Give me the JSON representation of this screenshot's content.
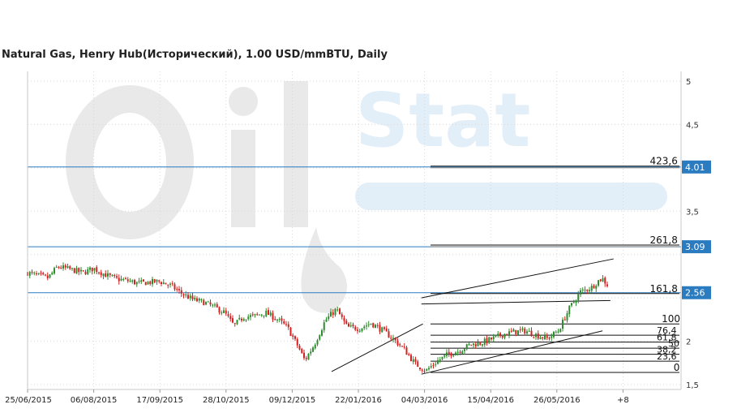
{
  "chart_data": {
    "type": "candlestick",
    "title": "Natural Gas, Henry Hub(Исторический), 1.00 USD/mmBTU, Daily",
    "watermark": "OilStat",
    "y_axis": {
      "range": [
        1.5,
        5.0
      ],
      "tick_values": [
        5,
        4.5,
        3.5,
        2,
        1.5
      ],
      "tick_labels": [
        "5",
        "4,5",
        "3,5",
        "2",
        "1,5"
      ]
    },
    "x_axis": {
      "tick_labels": [
        "25/06/2015",
        "06/08/2015",
        "17/09/2015",
        "28/10/2015",
        "09/12/2015",
        "22/01/2016",
        "04/03/2016",
        "15/04/2016",
        "26/05/2016",
        "+8"
      ]
    },
    "horizontal_levels": [
      {
        "value": 4.01,
        "label": "4.01"
      },
      {
        "value": 3.09,
        "label": "3.09"
      },
      {
        "value": 2.56,
        "label": "2.56"
      }
    ],
    "fibonacci": {
      "low": 1.64,
      "high": 2.2,
      "levels": [
        {
          "label": "423,6",
          "value": 4.02
        },
        {
          "label": "261,8",
          "value": 3.11
        },
        {
          "label": "161,8",
          "value": 2.55
        },
        {
          "label": "100",
          "value": 2.2
        },
        {
          "label": "76,4",
          "value": 2.07
        },
        {
          "label": "61,8",
          "value": 1.99
        },
        {
          "label": "50",
          "value": 1.92
        },
        {
          "label": "38,2",
          "value": 1.85
        },
        {
          "label": "23,6",
          "value": 1.77
        },
        {
          "label": "0",
          "value": 1.64
        }
      ]
    },
    "trend_lines": [
      {
        "from": {
          "date": "2016-01-04",
          "value": 1.65
        },
        "to": {
          "date": "2016-03-02",
          "value": 2.2
        }
      },
      {
        "from": {
          "date": "2016-03-01",
          "value": 1.62
        },
        "to": {
          "date": "2016-06-24",
          "value": 2.12
        }
      },
      {
        "from": {
          "date": "2016-03-01",
          "value": 2.43
        },
        "to": {
          "date": "2016-06-29",
          "value": 2.47
        }
      },
      {
        "from": {
          "date": "2016-03-01",
          "value": 2.5
        },
        "to": {
          "date": "2016-07-01",
          "value": 2.95
        }
      }
    ],
    "price_path": [
      [
        "2015-06-25",
        2.79
      ],
      [
        "2015-07-01",
        2.76
      ],
      [
        "2015-07-08",
        2.73
      ],
      [
        "2015-07-14",
        2.86
      ],
      [
        "2015-07-22",
        2.83
      ],
      [
        "2015-07-30",
        2.79
      ],
      [
        "2015-08-06",
        2.84
      ],
      [
        "2015-08-13",
        2.77
      ],
      [
        "2015-08-20",
        2.72
      ],
      [
        "2015-08-27",
        2.7
      ],
      [
        "2015-09-03",
        2.67
      ],
      [
        "2015-09-10",
        2.68
      ],
      [
        "2015-09-17",
        2.69
      ],
      [
        "2015-09-24",
        2.64
      ],
      [
        "2015-10-01",
        2.55
      ],
      [
        "2015-10-08",
        2.48
      ],
      [
        "2015-10-15",
        2.45
      ],
      [
        "2015-10-22",
        2.39
      ],
      [
        "2015-10-28",
        2.33
      ],
      [
        "2015-11-03",
        2.18
      ],
      [
        "2015-11-09",
        2.28
      ],
      [
        "2015-11-16",
        2.29
      ],
      [
        "2015-11-23",
        2.33
      ],
      [
        "2015-11-30",
        2.26
      ],
      [
        "2015-12-07",
        2.16
      ],
      [
        "2015-12-14",
        1.93
      ],
      [
        "2015-12-18",
        1.78
      ],
      [
        "2015-12-24",
        1.96
      ],
      [
        "2015-12-31",
        2.24
      ],
      [
        "2016-01-07",
        2.37
      ],
      [
        "2016-01-14",
        2.16
      ],
      [
        "2016-01-22",
        2.15
      ],
      [
        "2016-01-29",
        2.21
      ],
      [
        "2016-02-05",
        2.13
      ],
      [
        "2016-02-12",
        2.03
      ],
      [
        "2016-02-19",
        1.91
      ],
      [
        "2016-02-26",
        1.74
      ],
      [
        "2016-03-04",
        1.66
      ],
      [
        "2016-03-11",
        1.77
      ],
      [
        "2016-03-18",
        1.85
      ],
      [
        "2016-03-25",
        1.89
      ],
      [
        "2016-04-01",
        1.96
      ],
      [
        "2016-04-08",
        1.98
      ],
      [
        "2016-04-15",
        2.03
      ],
      [
        "2016-04-22",
        2.08
      ],
      [
        "2016-04-29",
        2.11
      ],
      [
        "2016-05-06",
        2.12
      ],
      [
        "2016-05-13",
        2.07
      ],
      [
        "2016-05-20",
        2.03
      ],
      [
        "2016-05-27",
        2.12
      ],
      [
        "2016-06-03",
        2.38
      ],
      [
        "2016-06-10",
        2.57
      ],
      [
        "2016-06-17",
        2.62
      ],
      [
        "2016-06-22",
        2.71
      ],
      [
        "2016-06-24",
        2.72
      ],
      [
        "2016-06-28",
        2.63
      ]
    ],
    "colors": {
      "up": "#2e8b2e",
      "down": "#d32020",
      "level_line": "#2a7bbf",
      "badge": "#2a7bbf",
      "fib_line": "#111111",
      "grid": "#d9d9d9",
      "watermark": "#e9e9e9",
      "watermark_accent": "#e2eef8"
    },
    "grid": true,
    "legend": "none"
  }
}
